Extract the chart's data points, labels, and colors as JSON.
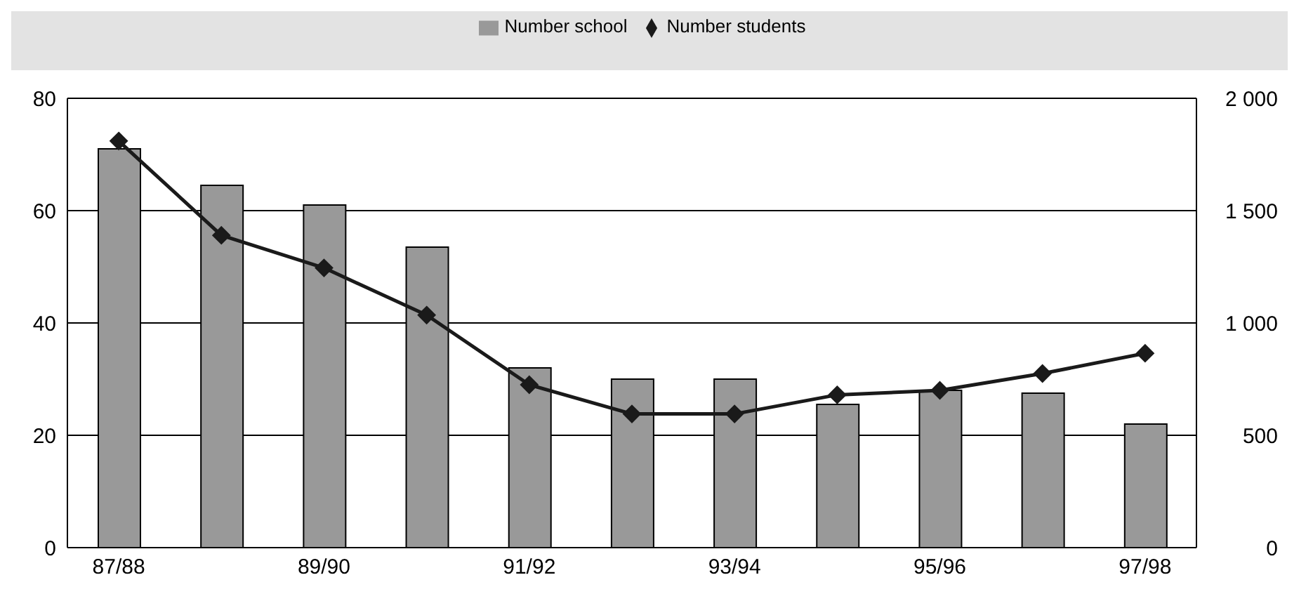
{
  "chart_data": {
    "type": "bar",
    "categories": [
      "87/88",
      null,
      "89/90",
      null,
      "91/92",
      null,
      "93/94",
      null,
      "95/96",
      null,
      "97/98"
    ],
    "series": [
      {
        "name": "Number school",
        "color": "#999999",
        "values": [
          71,
          64.5,
          61,
          53.5,
          32,
          30,
          30,
          25.5,
          28,
          27.5,
          22
        ]
      },
      {
        "name": "Number students",
        "type": "line",
        "axis": "y2",
        "color": "#1a1a1a",
        "marker": "diamond",
        "values": [
          1810,
          1390,
          1245,
          1035,
          725,
          595,
          595,
          680,
          700,
          775,
          865
        ]
      }
    ],
    "ylim": [
      0,
      80
    ],
    "yticks": [
      0,
      20,
      40,
      60,
      80
    ],
    "y2lim": [
      0,
      2000
    ],
    "y2ticks": [
      0,
      {
        "value": 500,
        "label": "500"
      },
      {
        "value": 1000,
        "label": "1 000"
      },
      {
        "value": 1500,
        "label": "1 500"
      },
      {
        "value": 2000,
        "label": "2 000"
      }
    ],
    "grid": "y",
    "legend": "top"
  }
}
